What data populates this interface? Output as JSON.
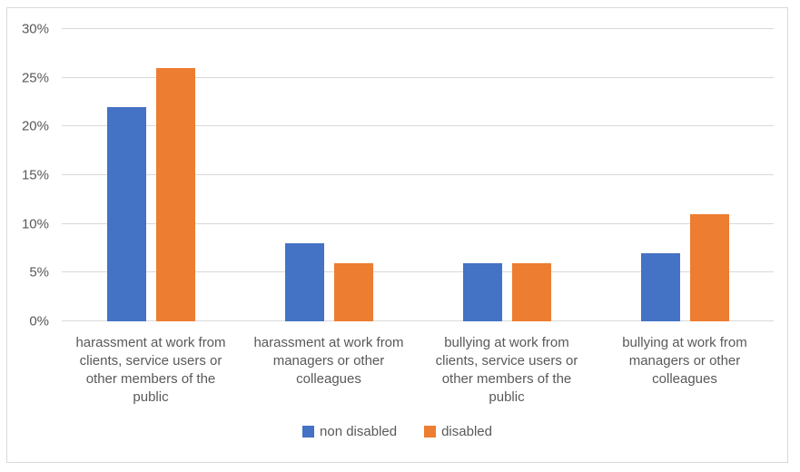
{
  "chart_data": {
    "type": "bar",
    "title": "",
    "categories": [
      "harassment at work from\nclients, service users or\nother members of the\npublic",
      "harassment at work from\nmanagers or other\ncolleagues",
      "bullying at work from\nclients, service users or\nother members of the\npublic",
      "bullying at work from\nmanagers or other\ncolleagues"
    ],
    "series": [
      {
        "name": "non disabled",
        "color": "#4472C4",
        "values": [
          22,
          8,
          6,
          7
        ]
      },
      {
        "name": "disabled",
        "color": "#ED7D31",
        "values": [
          26,
          6,
          6,
          11
        ]
      }
    ],
    "ylim": [
      0,
      30
    ],
    "y_ticks": [
      {
        "value": 0,
        "label": "0%"
      },
      {
        "value": 5,
        "label": "5%"
      },
      {
        "value": 10,
        "label": "10%"
      },
      {
        "value": 15,
        "label": "15%"
      },
      {
        "value": 20,
        "label": "20%"
      },
      {
        "value": 25,
        "label": "25%"
      },
      {
        "value": 30,
        "label": "30%"
      }
    ],
    "grid": true,
    "legend_position": "bottom"
  },
  "colors": {
    "grid": "#D9D9D9",
    "axis_text": "#595959",
    "frame_border": "#D9D9D9",
    "background": "#FFFFFF"
  }
}
